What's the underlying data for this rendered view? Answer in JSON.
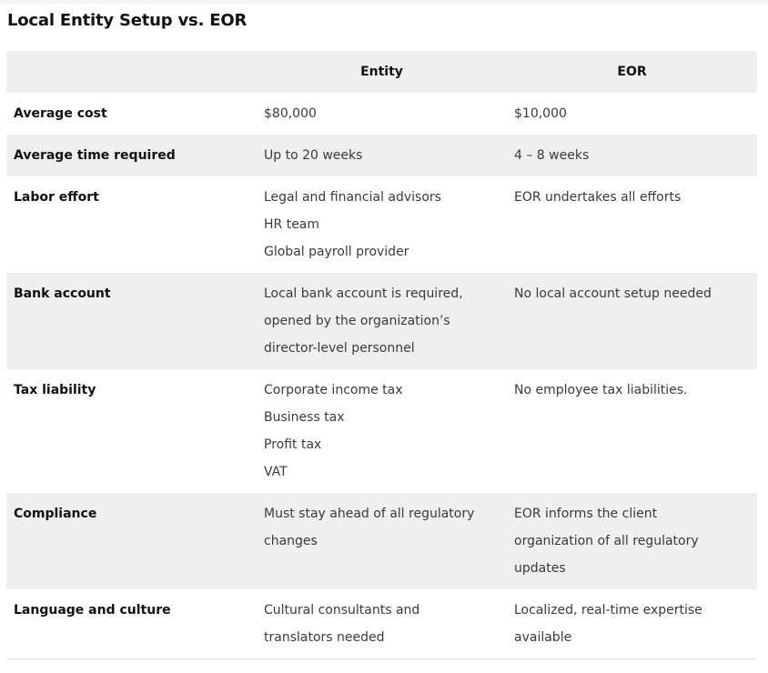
{
  "title": "Local Entity Setup vs. EOR",
  "table": {
    "headers": [
      "",
      "Entity",
      "EOR"
    ],
    "rows": [
      {
        "label": "Average cost",
        "entity": [
          "$80,000"
        ],
        "eor": [
          "$10,000"
        ]
      },
      {
        "label": "Average time required",
        "entity": [
          "Up to 20 weeks"
        ],
        "eor": [
          "4 – 8 weeks"
        ]
      },
      {
        "label": "Labor effort",
        "entity": [
          "Legal and financial advisors",
          "HR team",
          "Global payroll provider"
        ],
        "eor": [
          "EOR undertakes all efforts"
        ]
      },
      {
        "label": "Bank account",
        "entity": [
          "Local bank account is required,",
          "opened by the organization’s",
          "director-level personnel"
        ],
        "eor": [
          "No local account setup needed"
        ]
      },
      {
        "label": "Tax liability",
        "entity": [
          "Corporate income tax",
          "Business tax",
          "Profit tax",
          "VAT"
        ],
        "eor": [
          "No employee tax liabilities."
        ]
      },
      {
        "label": "Compliance",
        "entity": [
          "Must stay ahead of all regulatory",
          "changes"
        ],
        "eor": [
          "EOR informs the client",
          "organization of all regulatory",
          "updates"
        ]
      },
      {
        "label": "Language and culture",
        "entity": [
          "Cultural consultants and",
          "translators needed"
        ],
        "eor": [
          "Localized, real-time expertise",
          "available"
        ]
      }
    ]
  }
}
